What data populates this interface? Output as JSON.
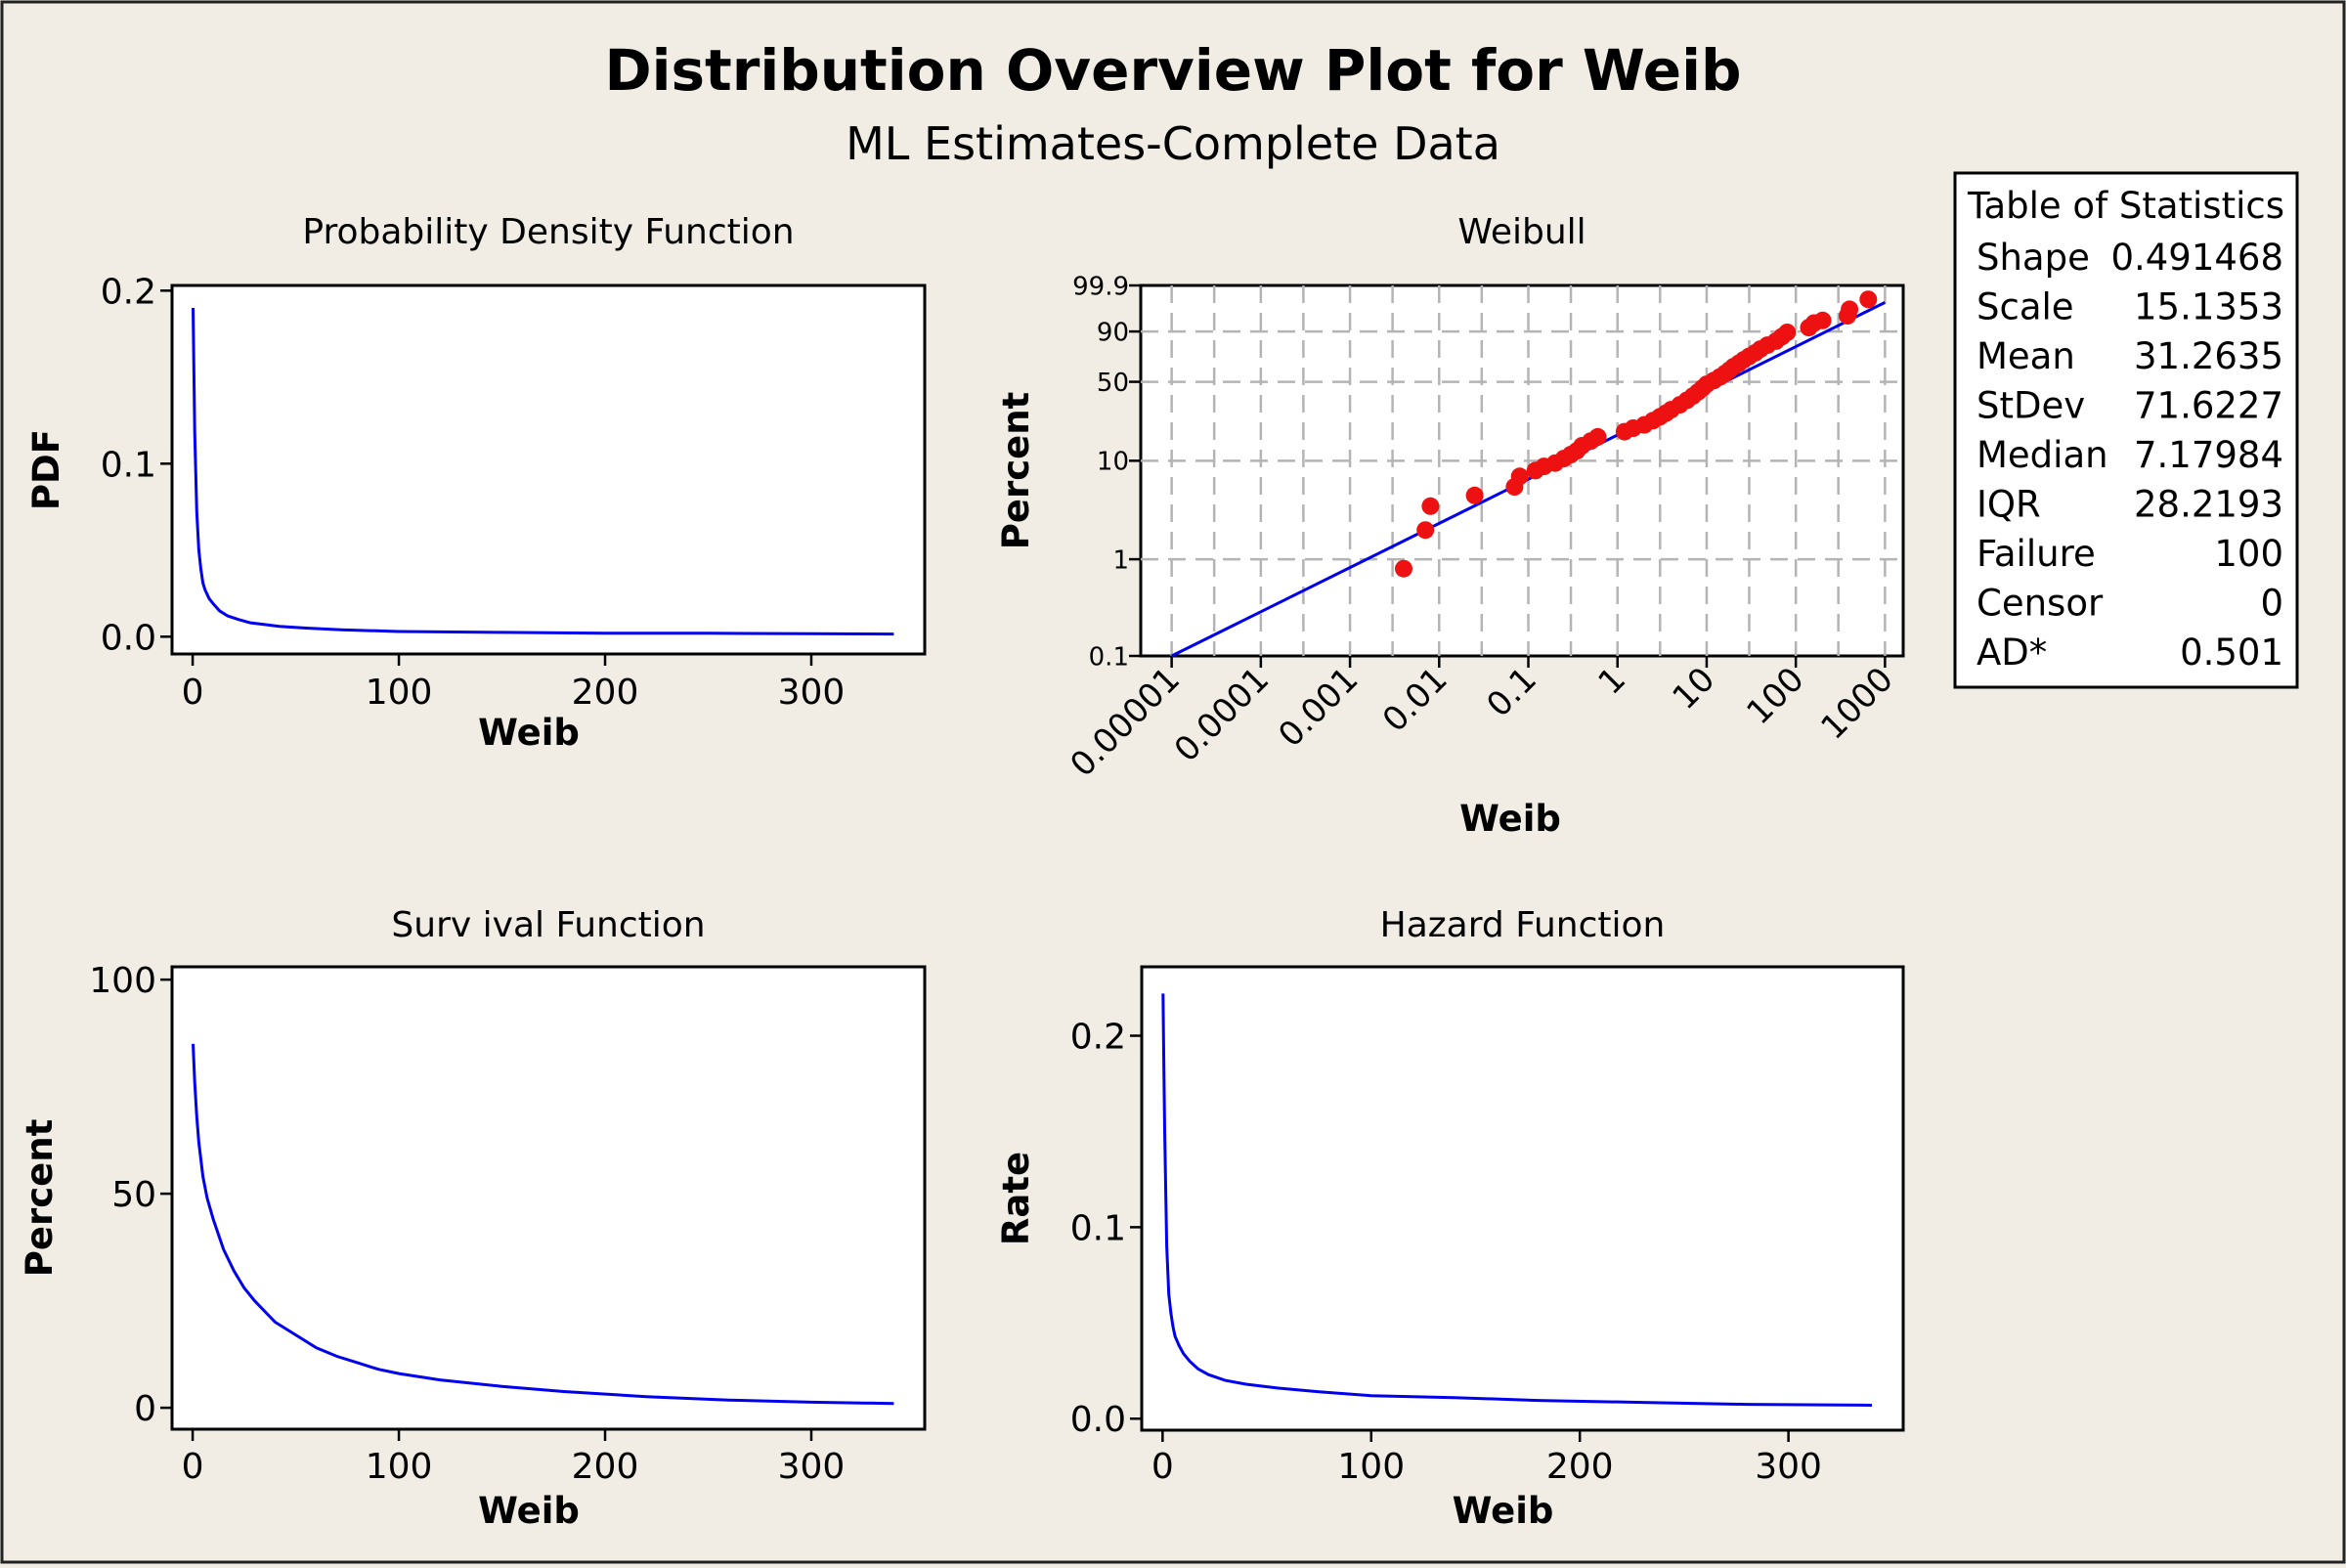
{
  "title": "Distribution Overview Plot for Weib",
  "subtitle": "ML Estimates-Complete Data",
  "colors": {
    "background": "#f1ede4",
    "curve": "#0000ee",
    "points": "#ee1111",
    "grid": "#b4b4b4"
  },
  "stats_table": {
    "title": "Table of Statistics",
    "rows": [
      {
        "label": "Shape",
        "value": "0.491468"
      },
      {
        "label": "Scale",
        "value": "15.1353"
      },
      {
        "label": "Mean",
        "value": "31.2635"
      },
      {
        "label": "StDev",
        "value": "71.6227"
      },
      {
        "label": "Median",
        "value": "7.17984"
      },
      {
        "label": "IQR",
        "value": "28.2193"
      },
      {
        "label": "Failure",
        "value": "100"
      },
      {
        "label": "Censor",
        "value": "0"
      },
      {
        "label": "AD*",
        "value": "0.501"
      }
    ]
  },
  "chart_data": [
    {
      "id": "pdf",
      "type": "line",
      "title": "Probability  Density  Function",
      "xlabel": "Weib",
      "ylabel": "PDF",
      "xlim": [
        -10,
        355
      ],
      "ylim": [
        -0.01,
        0.203
      ],
      "xticks": [
        0,
        100,
        200,
        300
      ],
      "xtick_labels": [
        "0",
        "100",
        "200",
        "300"
      ],
      "yticks": [
        0,
        0.1,
        0.2
      ],
      "ytick_labels": [
        "0.0",
        "0.1",
        "0.2"
      ],
      "x": [
        0.2,
        1,
        2,
        3,
        4,
        5,
        6,
        8,
        10,
        13,
        17,
        22,
        28,
        35,
        42,
        55,
        72,
        100,
        150,
        200,
        250,
        300,
        340
      ],
      "y": [
        0.19,
        0.118,
        0.072,
        0.05,
        0.039,
        0.031,
        0.027,
        0.022,
        0.019,
        0.015,
        0.012,
        0.01,
        0.008,
        0.007,
        0.006,
        0.005,
        0.004,
        0.003,
        0.0025,
        0.002,
        0.002,
        0.0017,
        0.0015
      ]
    },
    {
      "id": "weibull",
      "type": "scatter",
      "title": "Weibull",
      "xlabel": "Weib",
      "ylabel": "Percent",
      "xscale": "log",
      "yscale": "weibull-probability",
      "xlim": [
        4.5e-06,
        1600
      ],
      "ylim": [
        0.1,
        99.9
      ],
      "grid": true,
      "xticks": [
        1e-05,
        0.0001,
        0.001,
        0.01,
        0.1,
        1,
        10,
        100,
        1000
      ],
      "xtick_labels": [
        "0.00001",
        "0.0001",
        "0.001",
        "0.01",
        "0.1",
        "1",
        "10",
        "100",
        "1000"
      ],
      "xgrid_minor": [
        3e-05,
        0.0003,
        0.003,
        0.03,
        0.3,
        3,
        30,
        300
      ],
      "yticks": [
        0.1,
        1,
        10,
        50,
        90,
        99.9
      ],
      "ytick_labels": [
        "0.1",
        "1",
        "10",
        "50",
        "90",
        "99.9"
      ],
      "ygrid": [
        1,
        10,
        50,
        90
      ],
      "fit_line": {
        "x": [
          1e-05,
          1000
        ],
        "y": [
          0.1,
          99.0
        ]
      },
      "points": [
        {
          "x": 0.004,
          "y": 0.8
        },
        {
          "x": 0.007,
          "y": 2.0
        },
        {
          "x": 0.008,
          "y": 3.5
        },
        {
          "x": 0.025,
          "y": 4.5
        },
        {
          "x": 0.07,
          "y": 5.5
        },
        {
          "x": 0.08,
          "y": 7.0
        },
        {
          "x": 0.12,
          "y": 8.0
        },
        {
          "x": 0.15,
          "y": 8.8
        },
        {
          "x": 0.2,
          "y": 9.5
        },
        {
          "x": 0.25,
          "y": 10.5
        },
        {
          "x": 0.3,
          "y": 11.5
        },
        {
          "x": 0.35,
          "y": 12.5
        },
        {
          "x": 0.4,
          "y": 14
        },
        {
          "x": 0.5,
          "y": 15.5
        },
        {
          "x": 0.6,
          "y": 17
        },
        {
          "x": 1.2,
          "y": 19
        },
        {
          "x": 1.5,
          "y": 20.5
        },
        {
          "x": 2,
          "y": 22
        },
        {
          "x": 2.5,
          "y": 24
        },
        {
          "x": 3,
          "y": 26
        },
        {
          "x": 3.5,
          "y": 28
        },
        {
          "x": 4,
          "y": 30
        },
        {
          "x": 5,
          "y": 33
        },
        {
          "x": 6,
          "y": 36
        },
        {
          "x": 7,
          "y": 39
        },
        {
          "x": 8,
          "y": 42
        },
        {
          "x": 9,
          "y": 45
        },
        {
          "x": 10,
          "y": 48
        },
        {
          "x": 12,
          "y": 51
        },
        {
          "x": 14,
          "y": 54
        },
        {
          "x": 16,
          "y": 57
        },
        {
          "x": 18,
          "y": 60
        },
        {
          "x": 20,
          "y": 63
        },
        {
          "x": 23,
          "y": 66
        },
        {
          "x": 26,
          "y": 69
        },
        {
          "x": 30,
          "y": 72
        },
        {
          "x": 35,
          "y": 75
        },
        {
          "x": 40,
          "y": 78
        },
        {
          "x": 48,
          "y": 81
        },
        {
          "x": 60,
          "y": 84
        },
        {
          "x": 70,
          "y": 87
        },
        {
          "x": 80,
          "y": 89.5
        },
        {
          "x": 140,
          "y": 92
        },
        {
          "x": 160,
          "y": 94
        },
        {
          "x": 200,
          "y": 95
        },
        {
          "x": 380,
          "y": 96.5
        },
        {
          "x": 400,
          "y": 98
        },
        {
          "x": 650,
          "y": 99.3
        }
      ]
    },
    {
      "id": "survival",
      "type": "line",
      "title": "Surv ival Function",
      "xlabel": "Weib",
      "ylabel": "Percent",
      "xlim": [
        -10,
        355
      ],
      "ylim": [
        -5,
        103
      ],
      "xticks": [
        0,
        100,
        200,
        300
      ],
      "xtick_labels": [
        "0",
        "100",
        "200",
        "300"
      ],
      "yticks": [
        0,
        50,
        100
      ],
      "ytick_labels": [
        "0",
        "50",
        "100"
      ],
      "x": [
        0.2,
        1,
        2,
        3,
        5,
        7,
        10,
        15,
        20,
        25,
        30,
        40,
        50,
        60,
        70,
        80,
        90,
        100,
        120,
        150,
        180,
        220,
        260,
        300,
        340
      ],
      "y": [
        85,
        76,
        68,
        62,
        54,
        49,
        44,
        37,
        32,
        28,
        25,
        20,
        17,
        14,
        12,
        10.5,
        9,
        8,
        6.5,
        5,
        3.8,
        2.6,
        1.8,
        1.3,
        1.0
      ]
    },
    {
      "id": "hazard",
      "type": "line",
      "title": "Hazard Function",
      "xlabel": "Weib",
      "ylabel": "Rate",
      "xlim": [
        -10,
        355
      ],
      "ylim": [
        -0.006,
        0.236
      ],
      "xticks": [
        0,
        100,
        200,
        300
      ],
      "xtick_labels": [
        "0",
        "100",
        "200",
        "300"
      ],
      "yticks": [
        0,
        0.1,
        0.2
      ],
      "ytick_labels": [
        "0.0",
        "0.1",
        "0.2"
      ],
      "x": [
        0.2,
        0.5,
        1,
        2,
        3,
        4,
        5,
        6,
        8,
        10,
        13,
        17,
        22,
        30,
        40,
        55,
        75,
        100,
        140,
        180,
        230,
        280,
        340
      ],
      "y": [
        0.222,
        0.195,
        0.15,
        0.09,
        0.065,
        0.055,
        0.048,
        0.043,
        0.038,
        0.034,
        0.03,
        0.026,
        0.023,
        0.02,
        0.018,
        0.016,
        0.014,
        0.012,
        0.011,
        0.0095,
        0.0085,
        0.0075,
        0.007
      ]
    }
  ]
}
